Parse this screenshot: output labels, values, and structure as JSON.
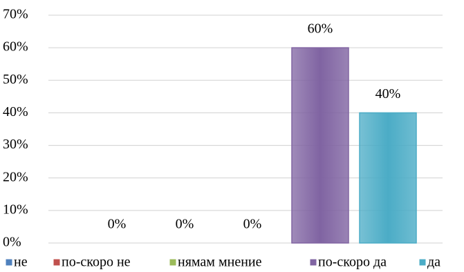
{
  "chart_data": {
    "type": "bar",
    "categories": [
      null
    ],
    "series": [
      {
        "name": "не",
        "color": "#4f81bd",
        "values": [
          0
        ],
        "value_labels": [
          "0%"
        ]
      },
      {
        "name": "по-скоро не",
        "color": "#c0504d",
        "values": [
          0
        ],
        "value_labels": [
          "0%"
        ]
      },
      {
        "name": "нямам мнение",
        "color": "#9bbb59",
        "values": [
          0
        ],
        "value_labels": [
          "0%"
        ]
      },
      {
        "name": "по-скоро да",
        "color": "#8064a2",
        "values": [
          60
        ],
        "value_labels": [
          "60%"
        ]
      },
      {
        "name": "да",
        "color": "#4bacc6",
        "values": [
          40
        ],
        "value_labels": [
          "40%"
        ]
      }
    ],
    "ylim": [
      0,
      70
    ],
    "yticks": [
      {
        "value": 0,
        "label": "0%"
      },
      {
        "value": 10,
        "label": "10%"
      },
      {
        "value": 20,
        "label": "20%"
      },
      {
        "value": 30,
        "label": "30%"
      },
      {
        "value": 40,
        "label": "40%"
      },
      {
        "value": 50,
        "label": "50%"
      },
      {
        "value": 60,
        "label": "60%"
      },
      {
        "value": 70,
        "label": "70%"
      }
    ],
    "grid": true,
    "legend": "bottom"
  }
}
